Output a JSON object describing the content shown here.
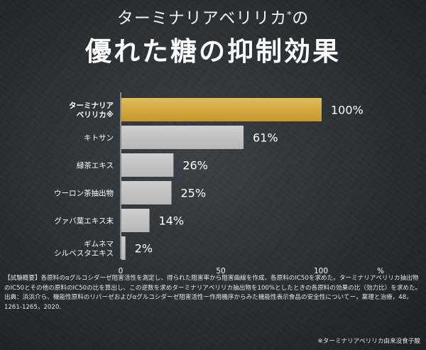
{
  "title": {
    "line1": "ターミナリアベリリカ",
    "mark": "*",
    "line1_suffix": "の",
    "line2": "優れた糖の抑制効果"
  },
  "chart_data": {
    "type": "bar",
    "orientation": "horizontal",
    "categories": [
      [
        "ターミナリア",
        "ベリリカ※"
      ],
      [
        "キトサン"
      ],
      [
        "緑茶エキス"
      ],
      [
        "ウーロン茶抽出物"
      ],
      [
        "グァバ葉エキス末"
      ],
      [
        "ギムネマ",
        "シルベスタエキス"
      ]
    ],
    "values": [
      100,
      61,
      26,
      25,
      14,
      2
    ],
    "value_labels": [
      "100%",
      "61%",
      "26%",
      "25%",
      "14%",
      "2%"
    ],
    "highlight_index": 0,
    "xlim": [
      0,
      100
    ],
    "x_ticks": [
      "0",
      "50",
      "100"
    ],
    "x_unit": "%",
    "colors": {
      "highlight": "#c8962a",
      "highlight_light": "#e2bd5a",
      "bar": "#b7b7b7",
      "bar_light": "#cfcfcf"
    }
  },
  "notes": {
    "method": "【試験概要】各原料のαグルコシダーゼ阻害活性を測定し、得られた阻害率から阻害曲線を作成、各原料のIC50を求めた。ターミナリアベリリカ抽出物のIC50とその他の原料のIC50の比を算出し、この逆数を求めターミナリアベリリカ抽出物を100%としたときの各原料の効果の比（効力比）を求めた。",
    "source": "出典：浜浜介ら、機能性原料のリバーゼおよびαグルコシダーゼ阻害活性ー作用機序からみた機能性表示食品の安全性についてー，薬理と治療，48，1261-1265，2020.",
    "footnote": "※ターミナリアベリリカ由来没食子酸"
  }
}
